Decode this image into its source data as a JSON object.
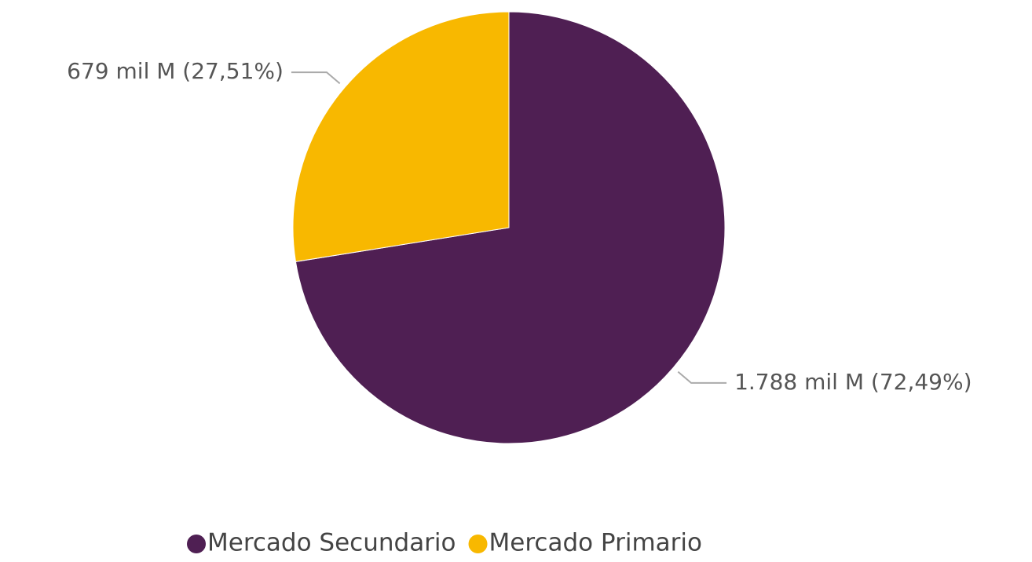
{
  "chart_data": {
    "type": "pie",
    "categories": [
      "Mercado Secundario",
      "Mercado Primario"
    ],
    "values": [
      1788000000000,
      679000000000
    ],
    "value_labels": [
      "1.788 mil M (72,49%)",
      "679 mil M (27,51%)"
    ],
    "colors": [
      "#4f1f53",
      "#f8b800"
    ],
    "legend": "bottom"
  }
}
